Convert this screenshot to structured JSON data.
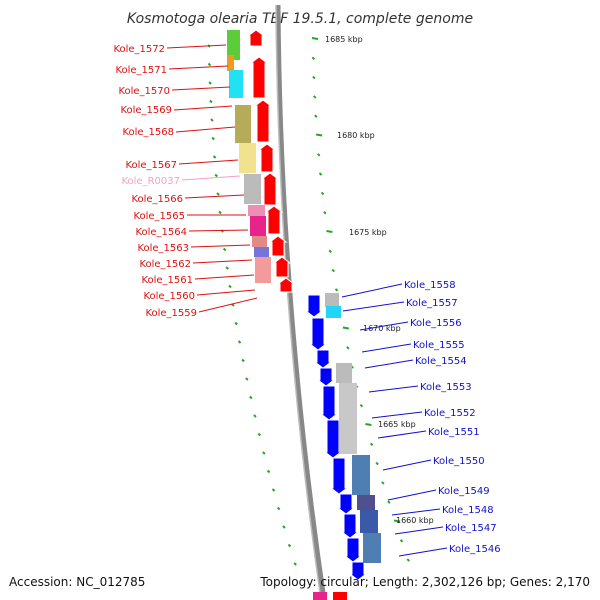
{
  "title": "Kosmotoga olearia TBF 19.5.1, complete genome",
  "footer": {
    "accession": "Accession: NC_012785",
    "topology": "Topology: circular; Length: 2,302,126 bp; Genes: 2,170"
  },
  "ruler_labels": [
    "1685 kbp",
    "1680 kbp",
    "1675 kbp",
    "1670 kbp",
    "1665 kbp",
    "1660 kbp"
  ],
  "genes_left": [
    "Kole_1572",
    "Kole_1571",
    "Kole_1570",
    "Kole_1569",
    "Kole_1568",
    "Kole_1567",
    "Kole_R0037",
    "Kole_1566",
    "Kole_1565",
    "Kole_1564",
    "Kole_1563",
    "Kole_1562",
    "Kole_1561",
    "Kole_1560",
    "Kole_1559"
  ],
  "genes_right": [
    "Kole_1558",
    "Kole_1557",
    "Kole_1556",
    "Kole_1555",
    "Kole_1554",
    "Kole_1553",
    "Kole_1552",
    "Kole_1551",
    "Kole_1550",
    "Kole_1549",
    "Kole_1548",
    "Kole_1547",
    "Kole_1546"
  ],
  "colors": {
    "left_label": "#dd1111",
    "right_label": "#1111cc",
    "rna_label": "#f5a0c8",
    "forward_strand": "#ff0000",
    "reverse_strand": "#0000ff",
    "axis": "#888888",
    "tick": "#22aa22"
  }
}
